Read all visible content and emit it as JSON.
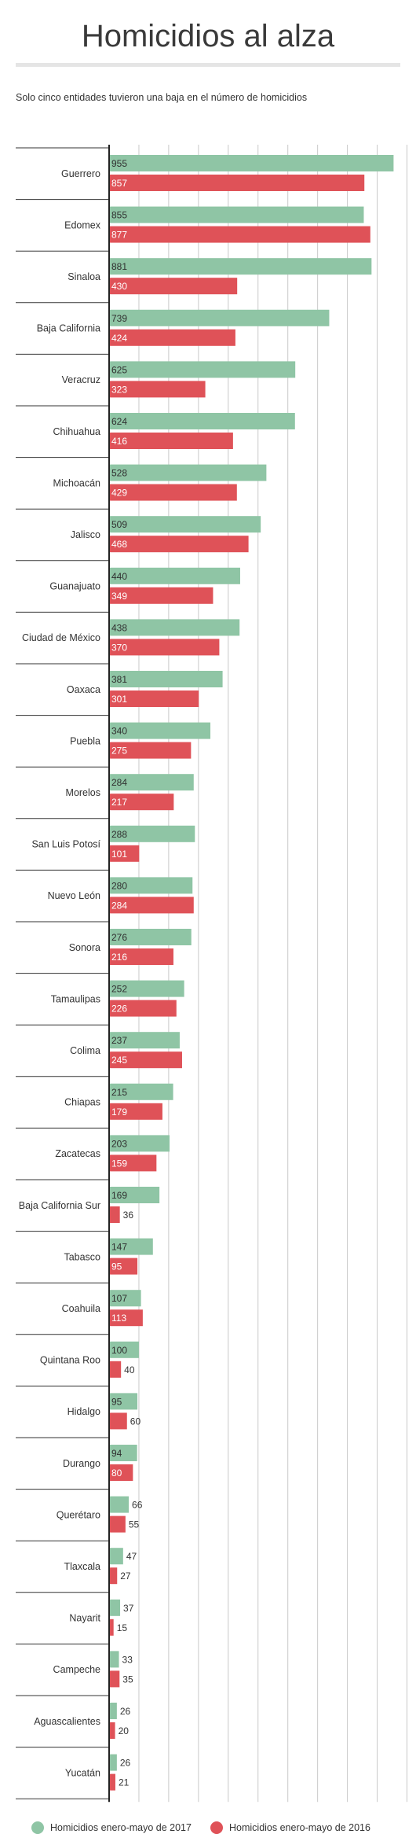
{
  "title": "Homicidios al alza",
  "subtitle": "Solo cinco entidades tuvieron una baja en el número de homicidios",
  "chart_data": {
    "type": "bar",
    "orientation": "horizontal",
    "categories": [
      "Guerrero",
      "Edomex",
      "Sinaloa",
      "Baja California",
      "Veracruz",
      "Chihuahua",
      "Michoacán",
      "Jalisco",
      "Guanajuato",
      "Ciudad de México",
      "Oaxaca",
      "Puebla",
      "Morelos",
      "San Luis Potosí",
      "Nuevo León",
      "Sonora",
      "Tamaulipas",
      "Colima",
      "Chiapas",
      "Zacatecas",
      "Baja California Sur",
      "Tabasco",
      "Coahuila",
      "Quintana Roo",
      "Hidalgo",
      "Durango",
      "Querétaro",
      "Tlaxcala",
      "Nayarit",
      "Campeche",
      "Aguascalientes",
      "Yucatán"
    ],
    "series": [
      {
        "name": "Homicidios enero-mayo de 2017",
        "color": "#8fc5a5",
        "values": [
          955,
          855,
          881,
          739,
          625,
          624,
          528,
          509,
          440,
          438,
          381,
          340,
          284,
          288,
          280,
          276,
          252,
          237,
          215,
          203,
          169,
          147,
          107,
          100,
          95,
          94,
          66,
          47,
          37,
          33,
          26,
          26
        ]
      },
      {
        "name": "Homicidios enero-mayo de 2016",
        "color": "#df5258",
        "values": [
          857,
          877,
          430,
          424,
          323,
          416,
          429,
          468,
          349,
          370,
          301,
          275,
          217,
          101,
          284,
          216,
          226,
          245,
          179,
          159,
          36,
          95,
          113,
          40,
          60,
          80,
          55,
          27,
          15,
          35,
          20,
          21
        ]
      }
    ],
    "xlim": [
      0,
      1000
    ],
    "xticks": [
      0,
      100,
      200,
      300,
      400,
      500,
      600,
      700,
      800,
      900
    ],
    "grid": true,
    "legend_position": "bottom"
  }
}
